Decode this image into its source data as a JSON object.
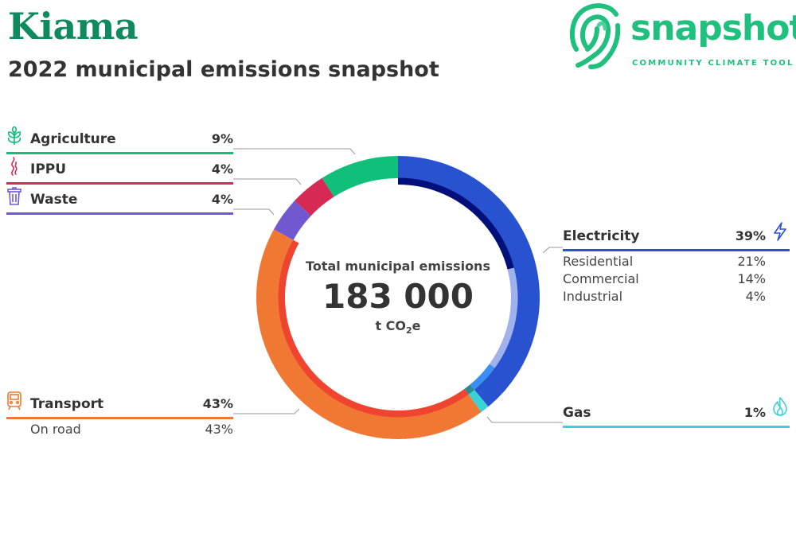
{
  "header": {
    "title": "Kiama",
    "subtitle": "2022 municipal emissions snapshot"
  },
  "logo": {
    "word": "snapshot",
    "tagline": "COMMUNITY CLIMATE TOOL",
    "color": "#1fbf7e"
  },
  "center": {
    "caption": "Total municipal emissions",
    "total": "183 000",
    "unit_prefix": "t CO",
    "unit_sub": "2",
    "unit_suffix": "e"
  },
  "chart_data": {
    "type": "pie",
    "total": 183000,
    "unit": "t CO2e",
    "series": [
      {
        "name": "Electricity",
        "percent": "39%",
        "value": 39,
        "color": "#2952d1",
        "icon": "lightning-icon",
        "sub": [
          {
            "name": "Residential",
            "percent": "21%",
            "value": 21,
            "color": "#000f7a"
          },
          {
            "name": "Commercial",
            "percent": "14%",
            "value": 14,
            "color": "#9fb2ee"
          },
          {
            "name": "Industrial",
            "percent": "4%",
            "value": 4,
            "color": "#3b8ff2"
          }
        ]
      },
      {
        "name": "Gas",
        "percent": "1%",
        "value": 1,
        "color": "#39d3d6",
        "icon": "flame-icon",
        "sub": [
          {
            "name": "",
            "value": 1,
            "color": "#2a8c92"
          }
        ]
      },
      {
        "name": "Transport",
        "percent": "43%",
        "value": 43,
        "color": "#f07833",
        "icon": "train-icon",
        "sub": [
          {
            "name": "On road",
            "percent": "43%",
            "value": 43,
            "color": "#ef4530"
          }
        ]
      },
      {
        "name": "Waste",
        "percent": "4%",
        "value": 4,
        "color": "#7158d1",
        "icon": "trash-icon",
        "sub": []
      },
      {
        "name": "IPPU",
        "percent": "4%",
        "value": 4,
        "color": "#d62a55",
        "icon": "smoke-icon",
        "sub": []
      },
      {
        "name": "Agriculture",
        "percent": "9%",
        "value": 9,
        "color": "#0fbf7a",
        "icon": "plant-icon",
        "sub": []
      }
    ]
  }
}
